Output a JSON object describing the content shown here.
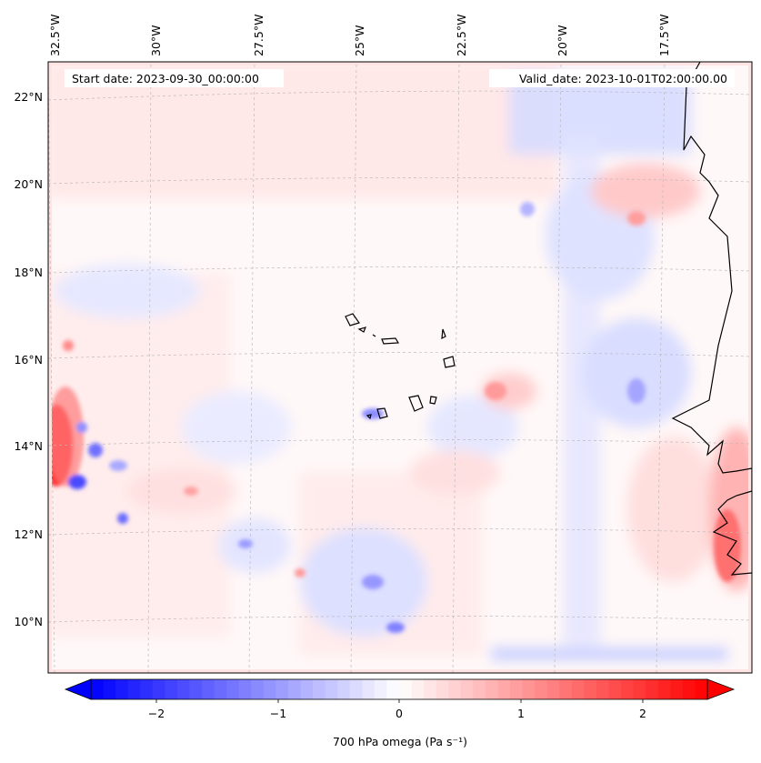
{
  "header": {
    "start_date": "Start date: 2023-09-30_00:00:00",
    "valid_date": "Valid_date: 2023-10-01T02:00:00.00"
  },
  "map": {
    "lon_labels": [
      "32.5°W",
      "30°W",
      "27.5°W",
      "25°W",
      "22.5°W",
      "20°W",
      "17.5°W"
    ],
    "lat_labels": [
      "22°N",
      "20°N",
      "18°N",
      "16°N",
      "14°N",
      "12°N",
      "10°N"
    ],
    "field": "700 hPa omega",
    "gridlines": "dashed"
  },
  "colorbar": {
    "label": "700 hPa omega (Pa s⁻¹)",
    "ticks": [
      "−2",
      "−1",
      "0",
      "1",
      "2"
    ],
    "vmin": -2.6,
    "vmax": 2.6,
    "colormap": "bwr",
    "extend": "both",
    "color_low": "#0000ff",
    "color_mid": "#ffffff",
    "color_high": "#ff0000"
  }
}
